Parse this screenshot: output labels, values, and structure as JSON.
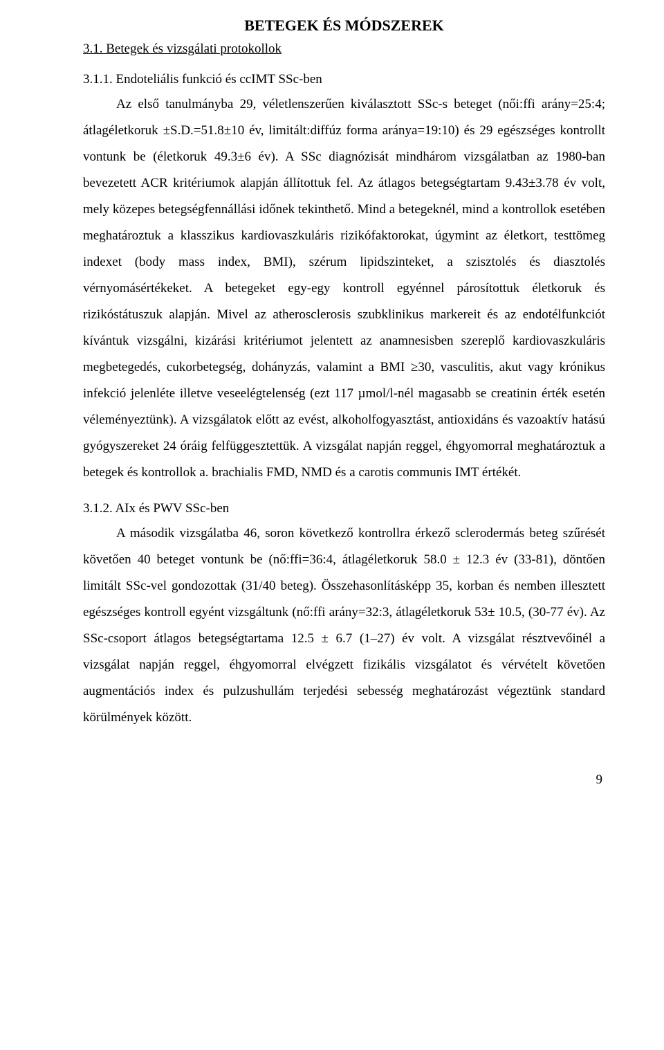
{
  "main_title": "BETEGEK ÉS MÓDSZEREK",
  "sub_title": "3.1. Betegek és vizsgálati protokollok",
  "section1": {
    "heading": "3.1.1. Endoteliális funkció és ccIMT SSc-ben",
    "body": "Az első tanulmányba 29, véletlenszerűen kiválasztott SSc-s beteget (női:ffi arány=25:4; átlagéletkoruk ±S.D.=51.8±10 év, limitált:diffúz forma aránya=19:10) és 29 egészséges kontrollt vontunk be (életkoruk 49.3±6 év). A SSc diagnózisát mindhárom vizsgálatban az 1980-ban bevezetett ACR kritériumok alapján állítottuk fel. Az átlagos betegségtartam 9.43±3.78 év volt, mely közepes betegségfennállási időnek tekinthető. Mind a betegeknél, mind a kontrollok esetében meghatároztuk a klasszikus kardiovaszkuláris rizikófaktorokat, úgymint az életkort, testtömeg indexet (body mass index, BMI), szérum lipidszinteket, a szisztolés és diasztolés vérnyomásértékeket. A betegeket egy-egy kontroll egyénnel párosítottuk életkoruk és rizikóstátuszuk alapján. Mivel az atherosclerosis szubklinikus markereit és az endotélfunkciót kívántuk vizsgálni, kizárási kritériumot jelentett az anamnesisben szereplő kardiovaszkuláris megbetegedés, cukorbetegség, dohányzás, valamint a BMI ≥30, vasculitis, akut vagy krónikus infekció jelenléte illetve veseelégtelenség (ezt 117 µmol/l-nél magasabb se creatinin érték esetén véleményeztünk). A vizsgálatok előtt az evést, alkoholfogyasztást, antioxidáns és vazoaktív hatású gyógyszereket 24 óráig felfüggesztettük. A vizsgálat napján reggel, éhgyomorral meghatároztuk a betegek és kontrollok a. brachialis FMD, NMD és a carotis communis IMT értékét."
  },
  "section2": {
    "heading": "3.1.2.  AIx és PWV SSc-ben",
    "body": "A második vizsgálatba 46, soron következő kontrollra érkező sclerodermás beteg szűrését követően 40 beteget vontunk be (nő:ffi=36:4, átlagéletkoruk 58.0 ± 12.3 év (33-81), döntően limitált SSc-vel gondozottak (31/40 beteg). Összehasonlításképp 35, korban és nemben illesztett egészséges kontroll egyént vizsgáltunk (nő:ffi arány=32:3, átlagéletkoruk 53± 10.5, (30-77 év). Az SSc-csoport átlagos betegségtartama 12.5 ± 6.7 (1–27) év volt. A vizsgálat résztvevőinél a vizsgálat napján reggel, éhgyomorral elvégzett fizikális vizsgálatot és vérvételt követően augmentációs index és pulzushullám terjedési sebesség meghatározást végeztünk standard körülmények között."
  },
  "page_number": "9"
}
